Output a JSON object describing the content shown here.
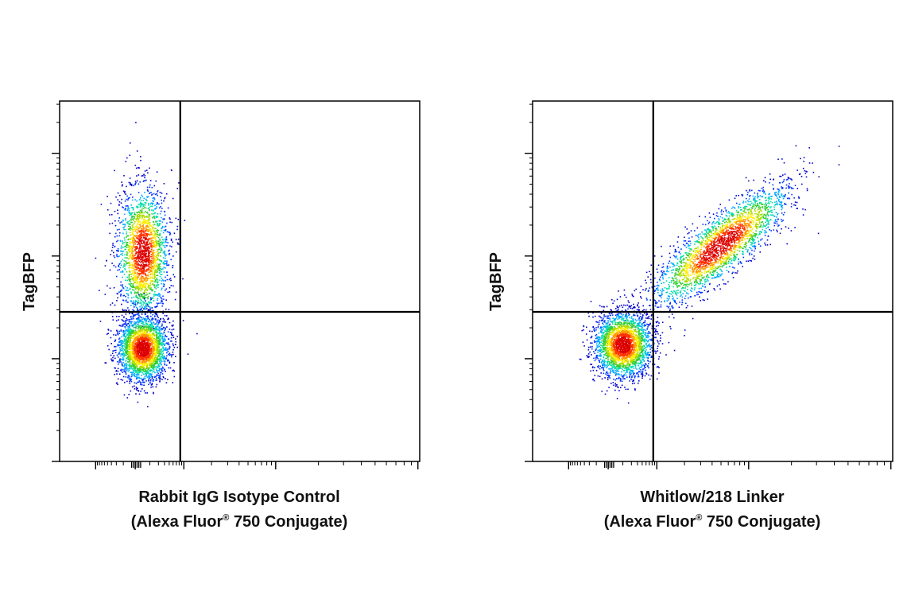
{
  "chart_data": [
    {
      "type": "scatter",
      "plot_kind": "flow cytometry density plot",
      "ylabel": "TagBFP",
      "xlabel_line1": "Rabbit IgG Isotype Control",
      "xlabel_line2_pre": "(Alexa Fluor",
      "xlabel_line2_sup": "®",
      "xlabel_line2_post": " 750 Conjugate)",
      "x_axis_scale": "log",
      "y_axis_scale": "log",
      "quadrant_gate": {
        "x": 0.335,
        "y": 0.585
      },
      "populations": [
        {
          "name": "TagBFP+ / conjugate-",
          "center": [
            0.23,
            0.42
          ],
          "spread": [
            0.035,
            0.09
          ],
          "count": 2200,
          "tilt": 0
        },
        {
          "name": "TagBFP- / conjugate-",
          "center": [
            0.23,
            0.685
          ],
          "spread": [
            0.035,
            0.045
          ],
          "count": 2600,
          "tilt": 0
        }
      ],
      "colormap": [
        "#0000cc",
        "#0033ff",
        "#00aaff",
        "#00ddaa",
        "#33cc33",
        "#aadd00",
        "#ffee00",
        "#ff9900",
        "#ff3300",
        "#dd0000"
      ],
      "grid": false,
      "legend": "none"
    },
    {
      "type": "scatter",
      "plot_kind": "flow cytometry density plot",
      "ylabel": "TagBFP",
      "xlabel_line1": "Whitlow/218 Linker",
      "xlabel_line2_pre": "(Alexa Fluor",
      "xlabel_line2_sup": "®",
      "xlabel_line2_post": " 750 Conjugate)",
      "x_axis_scale": "log",
      "y_axis_scale": "log",
      "quadrant_gate": {
        "x": 0.335,
        "y": 0.585
      },
      "populations": [
        {
          "name": "TagBFP+ / conjugate+",
          "center": [
            0.52,
            0.4
          ],
          "spread": [
            0.12,
            0.035
          ],
          "count": 2600,
          "tilt": -0.85
        },
        {
          "name": "TagBFP- / conjugate-",
          "center": [
            0.25,
            0.675
          ],
          "spread": [
            0.04,
            0.045
          ],
          "count": 2600,
          "tilt": 0
        }
      ],
      "colormap": [
        "#0000cc",
        "#0033ff",
        "#00aaff",
        "#00ddaa",
        "#33cc33",
        "#aadd00",
        "#ffee00",
        "#ff9900",
        "#ff3300",
        "#dd0000"
      ],
      "grid": false,
      "legend": "none"
    }
  ]
}
